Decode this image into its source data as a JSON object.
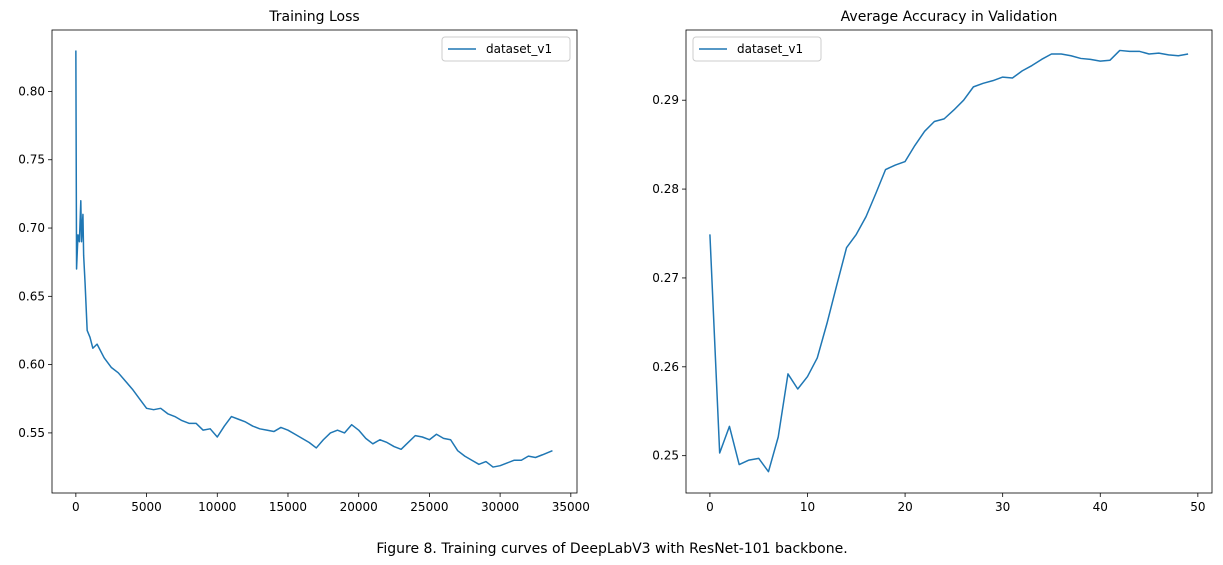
{
  "chart_data": [
    {
      "type": "line",
      "title": "Training Loss",
      "x": [
        0,
        50,
        150,
        250,
        350,
        400,
        500,
        550,
        650,
        800,
        1000,
        1200,
        1500,
        2000,
        2500,
        3000,
        3500,
        4000,
        4500,
        5000,
        5500,
        6000,
        6500,
        7000,
        7500,
        8000,
        8500,
        9000,
        9500,
        10000,
        10500,
        11000,
        11500,
        12000,
        12500,
        13000,
        13500,
        14000,
        14500,
        15000,
        15500,
        16000,
        16500,
        17000,
        17500,
        18000,
        18500,
        19000,
        19500,
        20000,
        20500,
        21000,
        21500,
        22000,
        22500,
        23000,
        23500,
        24000,
        24500,
        25000,
        25500,
        26000,
        26500,
        27000,
        27500,
        28000,
        28500,
        29000,
        29500,
        30000,
        30500,
        31000,
        31500,
        32000,
        32500,
        33000,
        33700
      ],
      "series": [
        {
          "name": "dataset_v1",
          "color": "#1f77b4",
          "values": [
            0.83,
            0.67,
            0.695,
            0.69,
            0.72,
            0.69,
            0.71,
            0.68,
            0.66,
            0.625,
            0.62,
            0.612,
            0.615,
            0.605,
            0.598,
            0.594,
            0.588,
            0.582,
            0.575,
            0.568,
            0.567,
            0.568,
            0.564,
            0.562,
            0.559,
            0.557,
            0.557,
            0.552,
            0.553,
            0.547,
            0.555,
            0.562,
            0.56,
            0.558,
            0.555,
            0.553,
            0.552,
            0.551,
            0.554,
            0.552,
            0.549,
            0.546,
            0.543,
            0.539,
            0.545,
            0.55,
            0.552,
            0.55,
            0.556,
            0.552,
            0.546,
            0.542,
            0.545,
            0.543,
            0.54,
            0.538,
            0.543,
            0.548,
            0.547,
            0.545,
            0.549,
            0.546,
            0.545,
            0.537,
            0.533,
            0.53,
            0.527,
            0.529,
            0.525,
            0.526,
            0.528,
            0.53,
            0.53,
            0.533,
            0.532,
            0.534,
            0.537
          ]
        }
      ],
      "xlim": [
        -1687,
        35437
      ],
      "ylim": [
        0.506,
        0.845
      ],
      "xticks": [
        0,
        5000,
        10000,
        15000,
        20000,
        25000,
        30000,
        35000
      ],
      "yticks": [
        0.55,
        {
          "value": 0.6,
          "label": "0.60"
        },
        0.65,
        {
          "value": 0.7,
          "label": "0.70"
        },
        0.75,
        {
          "value": 0.8,
          "label": "0.80"
        }
      ],
      "legend": "upper right"
    },
    {
      "type": "line",
      "title": "Average Accuracy in Validation",
      "x": [
        0,
        1,
        2,
        3,
        4,
        5,
        6,
        7,
        8,
        9,
        10,
        11,
        12,
        13,
        14,
        15,
        16,
        17,
        18,
        19,
        20,
        21,
        22,
        23,
        24,
        25,
        26,
        27,
        28,
        29,
        30,
        31,
        32,
        33,
        34,
        35,
        36,
        37,
        38,
        39,
        40,
        41,
        42,
        43,
        44,
        45,
        46,
        47,
        48,
        49
      ],
      "series": [
        {
          "name": "dataset_v1",
          "color": "#1f77b4",
          "values": [
            0.2749,
            0.2503,
            0.2533,
            0.249,
            0.2495,
            0.2497,
            0.2482,
            0.2521,
            0.2592,
            0.2575,
            0.2589,
            0.261,
            0.2649,
            0.2692,
            0.2734,
            0.2749,
            0.2769,
            0.2795,
            0.2822,
            0.2827,
            0.2831,
            0.2849,
            0.2865,
            0.2876,
            0.2879,
            0.2889,
            0.29,
            0.2915,
            0.2919,
            0.2922,
            0.2926,
            0.2925,
            0.2933,
            0.2939,
            0.2946,
            0.2952,
            0.2952,
            0.295,
            0.2947,
            0.2946,
            0.2944,
            0.2945,
            0.2956,
            0.2955,
            0.2955,
            0.2952,
            0.2953,
            0.2951,
            0.295,
            0.2952
          ]
        }
      ],
      "xlim": [
        -2.45,
        51.45
      ],
      "ylim": [
        0.2458,
        0.2979
      ],
      "xticks": [
        0,
        10,
        20,
        30,
        40,
        50
      ],
      "yticks": [
        0.25,
        0.26,
        0.27,
        0.28,
        0.29
      ],
      "legend": "upper left"
    }
  ],
  "caption": "Figure 8. Training curves of DeepLabV3 with ResNet-101 backbone."
}
